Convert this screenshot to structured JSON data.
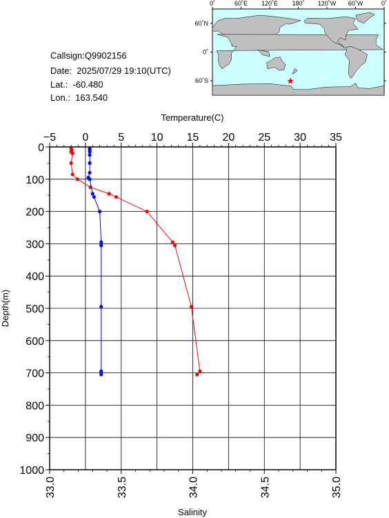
{
  "station": {
    "callsign": "Callsign:Q9902156",
    "date": "Date:  2025/07/29 19:10(UTC)",
    "lat": "Lat.:  -60.480",
    "lon": "Lon.:  163.540"
  },
  "map": {
    "lon_ticks": [
      "0˚",
      "60˚E",
      "120˚E",
      "180˚",
      "120˚W",
      "60˚W",
      "0˚"
    ],
    "lat_ticks": [
      "60˚N",
      "0˚",
      "60˚S"
    ],
    "ocean_color": "#ccffff",
    "land_color": "#bfbfbf",
    "marker_color": "#ff0000",
    "marker": {
      "lon": 163.54,
      "lat": -60.48
    }
  },
  "chart_data": {
    "type": "line",
    "title": "",
    "xlabel_top": "Temperature(C)",
    "xlabel_bottom": "Salinity",
    "ylabel": "Depth(m)",
    "temperature_range": [
      -5,
      35
    ],
    "temperature_ticks": [
      "−5",
      "0",
      "5",
      "10",
      "15",
      "20",
      "25",
      "30",
      "35"
    ],
    "salinity_range": [
      33.0,
      35.0
    ],
    "salinity_ticks": [
      "33.0",
      "33.5",
      "34.0",
      "34.5",
      "35.0"
    ],
    "depth_range": [
      0,
      1000
    ],
    "depth_ticks": [
      "0",
      "100",
      "200",
      "300",
      "400",
      "500",
      "600",
      "700",
      "800",
      "900",
      "1000"
    ],
    "grid": true,
    "series": [
      {
        "quantity": "temperature",
        "color": "#ff0000",
        "points": [
          {
            "depth": 5,
            "value": -2.0
          },
          {
            "depth": 10,
            "value": -1.9
          },
          {
            "depth": 15,
            "value": -2.0
          },
          {
            "depth": 20,
            "value": -1.8
          },
          {
            "depth": 50,
            "value": -2.0
          },
          {
            "depth": 85,
            "value": -1.8
          },
          {
            "depth": 100,
            "value": -1.1
          },
          {
            "depth": 125,
            "value": 0.7
          },
          {
            "depth": 145,
            "value": 3.3
          },
          {
            "depth": 155,
            "value": 4.3
          },
          {
            "depth": 200,
            "value": 8.6
          },
          {
            "depth": 295,
            "value": 12.2
          },
          {
            "depth": 305,
            "value": 12.5
          },
          {
            "depth": 495,
            "value": 14.8
          },
          {
            "depth": 695,
            "value": 16.0
          },
          {
            "depth": 705,
            "value": 15.6
          }
        ]
      },
      {
        "quantity": "salinity",
        "color": "#0000ff",
        "points": [
          {
            "depth": 5,
            "value": 33.28
          },
          {
            "depth": 10,
            "value": 33.28
          },
          {
            "depth": 15,
            "value": 33.28
          },
          {
            "depth": 25,
            "value": 33.28
          },
          {
            "depth": 50,
            "value": 33.28
          },
          {
            "depth": 80,
            "value": 33.28
          },
          {
            "depth": 95,
            "value": 33.27
          },
          {
            "depth": 100,
            "value": 33.28
          },
          {
            "depth": 145,
            "value": 33.3
          },
          {
            "depth": 155,
            "value": 33.31
          },
          {
            "depth": 200,
            "value": 33.35
          },
          {
            "depth": 295,
            "value": 33.36
          },
          {
            "depth": 305,
            "value": 33.36
          },
          {
            "depth": 495,
            "value": 33.36
          },
          {
            "depth": 695,
            "value": 33.36
          },
          {
            "depth": 705,
            "value": 33.36
          }
        ]
      }
    ]
  }
}
